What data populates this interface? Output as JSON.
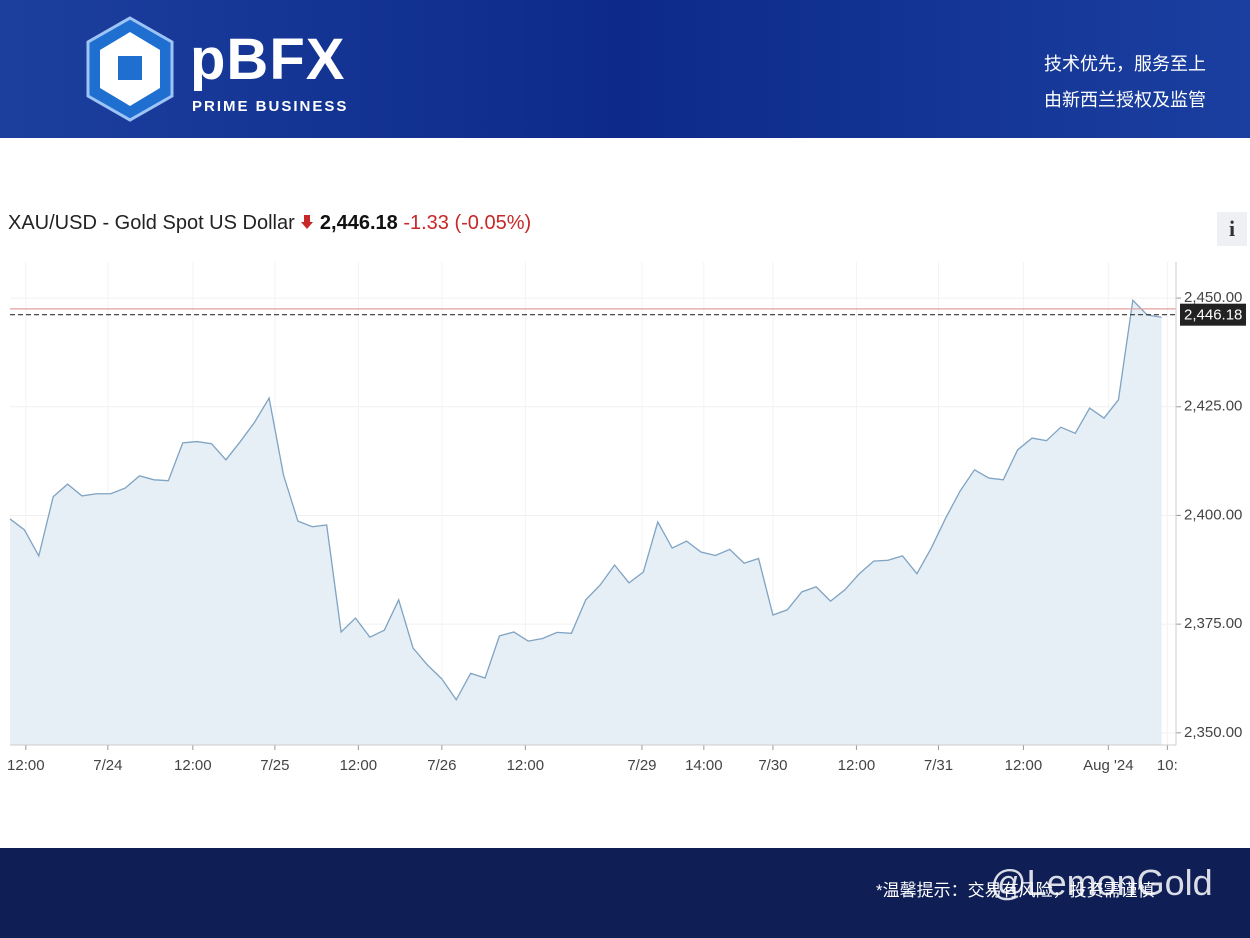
{
  "header": {
    "brand": "pBFX",
    "brand_sub": "PRIME BUSINESS",
    "slogan_1": "技术优先，服务至上",
    "slogan_2": "由新西兰授权及监管"
  },
  "quote": {
    "symbol": "XAU/USD - Gold Spot US Dollar",
    "price": "2,446.18",
    "change": "-1.33",
    "change_pct": "(-0.05%)",
    "info": "i"
  },
  "footer": {
    "note": "*温馨提示：交易有风险，投资需谨慎",
    "watermark": "@LemonGold"
  },
  "chart_data": {
    "type": "area",
    "series": [
      {
        "name": "XAU/USD",
        "color": "#7fa3c2",
        "fill": "#e6eef6",
        "values": [
          2399.2,
          2396.7,
          2390.7,
          2404.3,
          2407.2,
          2404.5,
          2405,
          2405,
          2406.3,
          2409.1,
          2408.2,
          2408,
          2416.7,
          2417,
          2416.5,
          2412.8,
          2417,
          2421.5,
          2427,
          2409.3,
          2398.7,
          2397.4,
          2397.8,
          2373.2,
          2376.4,
          2372,
          2373.6,
          2380.6,
          2369.5,
          2365.6,
          2362.4,
          2357.6,
          2363.7,
          2362.6,
          2372.3,
          2373.2,
          2371.1,
          2371.7,
          2373.1,
          2372.9,
          2380.6,
          2384,
          2388.6,
          2384.5,
          2387,
          2398.5,
          2392.5,
          2394.1,
          2391.6,
          2390.8,
          2392.2,
          2389,
          2390.1,
          2377.1,
          2378.3,
          2382.4,
          2383.6,
          2380.3,
          2382.9,
          2386.6,
          2389.5,
          2389.7,
          2390.7,
          2386.6,
          2392.5,
          2399.4,
          2405.6,
          2410.5,
          2408.6,
          2408.2,
          2415.1,
          2417.8,
          2417.2,
          2420.3,
          2418.9,
          2424.7,
          2422.4,
          2426.6,
          2449.5,
          2446.1,
          2445.6
        ]
      }
    ],
    "xlim": [
      0,
      81
    ],
    "xticks": [
      {
        "value": 1.1,
        "label": "12:00"
      },
      {
        "value": 6.8,
        "label": "7/24"
      },
      {
        "value": 12.7,
        "label": "12:00"
      },
      {
        "value": 18.4,
        "label": "7/25"
      },
      {
        "value": 24.2,
        "label": "12:00"
      },
      {
        "value": 30,
        "label": "7/26"
      },
      {
        "value": 35.8,
        "label": "12:00"
      },
      {
        "value": 43.9,
        "label": "7/29"
      },
      {
        "value": 48.2,
        "label": "14:00"
      },
      {
        "value": 53,
        "label": "7/30"
      },
      {
        "value": 58.8,
        "label": "12:00"
      },
      {
        "value": 64.5,
        "label": "7/31"
      },
      {
        "value": 70.4,
        "label": "12:00"
      },
      {
        "value": 76.3,
        "label": "Aug '24"
      },
      {
        "value": 80.4,
        "label": "10:"
      }
    ],
    "ylim": [
      2347.2,
      2458.3
    ],
    "yticks": [
      {
        "value": 2350,
        "label": "2,350.00"
      },
      {
        "value": 2375,
        "label": "2,375.00"
      },
      {
        "value": 2400,
        "label": "2,400.00"
      },
      {
        "value": 2425,
        "label": "2,425.00"
      },
      {
        "value": 2450,
        "label": "2,450.00"
      }
    ],
    "last_price": {
      "value": 2446.18,
      "label": "2,446.18",
      "color": "#333333"
    },
    "previous_close": {
      "value": 2447.51,
      "color": "#e0a0a0"
    },
    "grid": true
  }
}
